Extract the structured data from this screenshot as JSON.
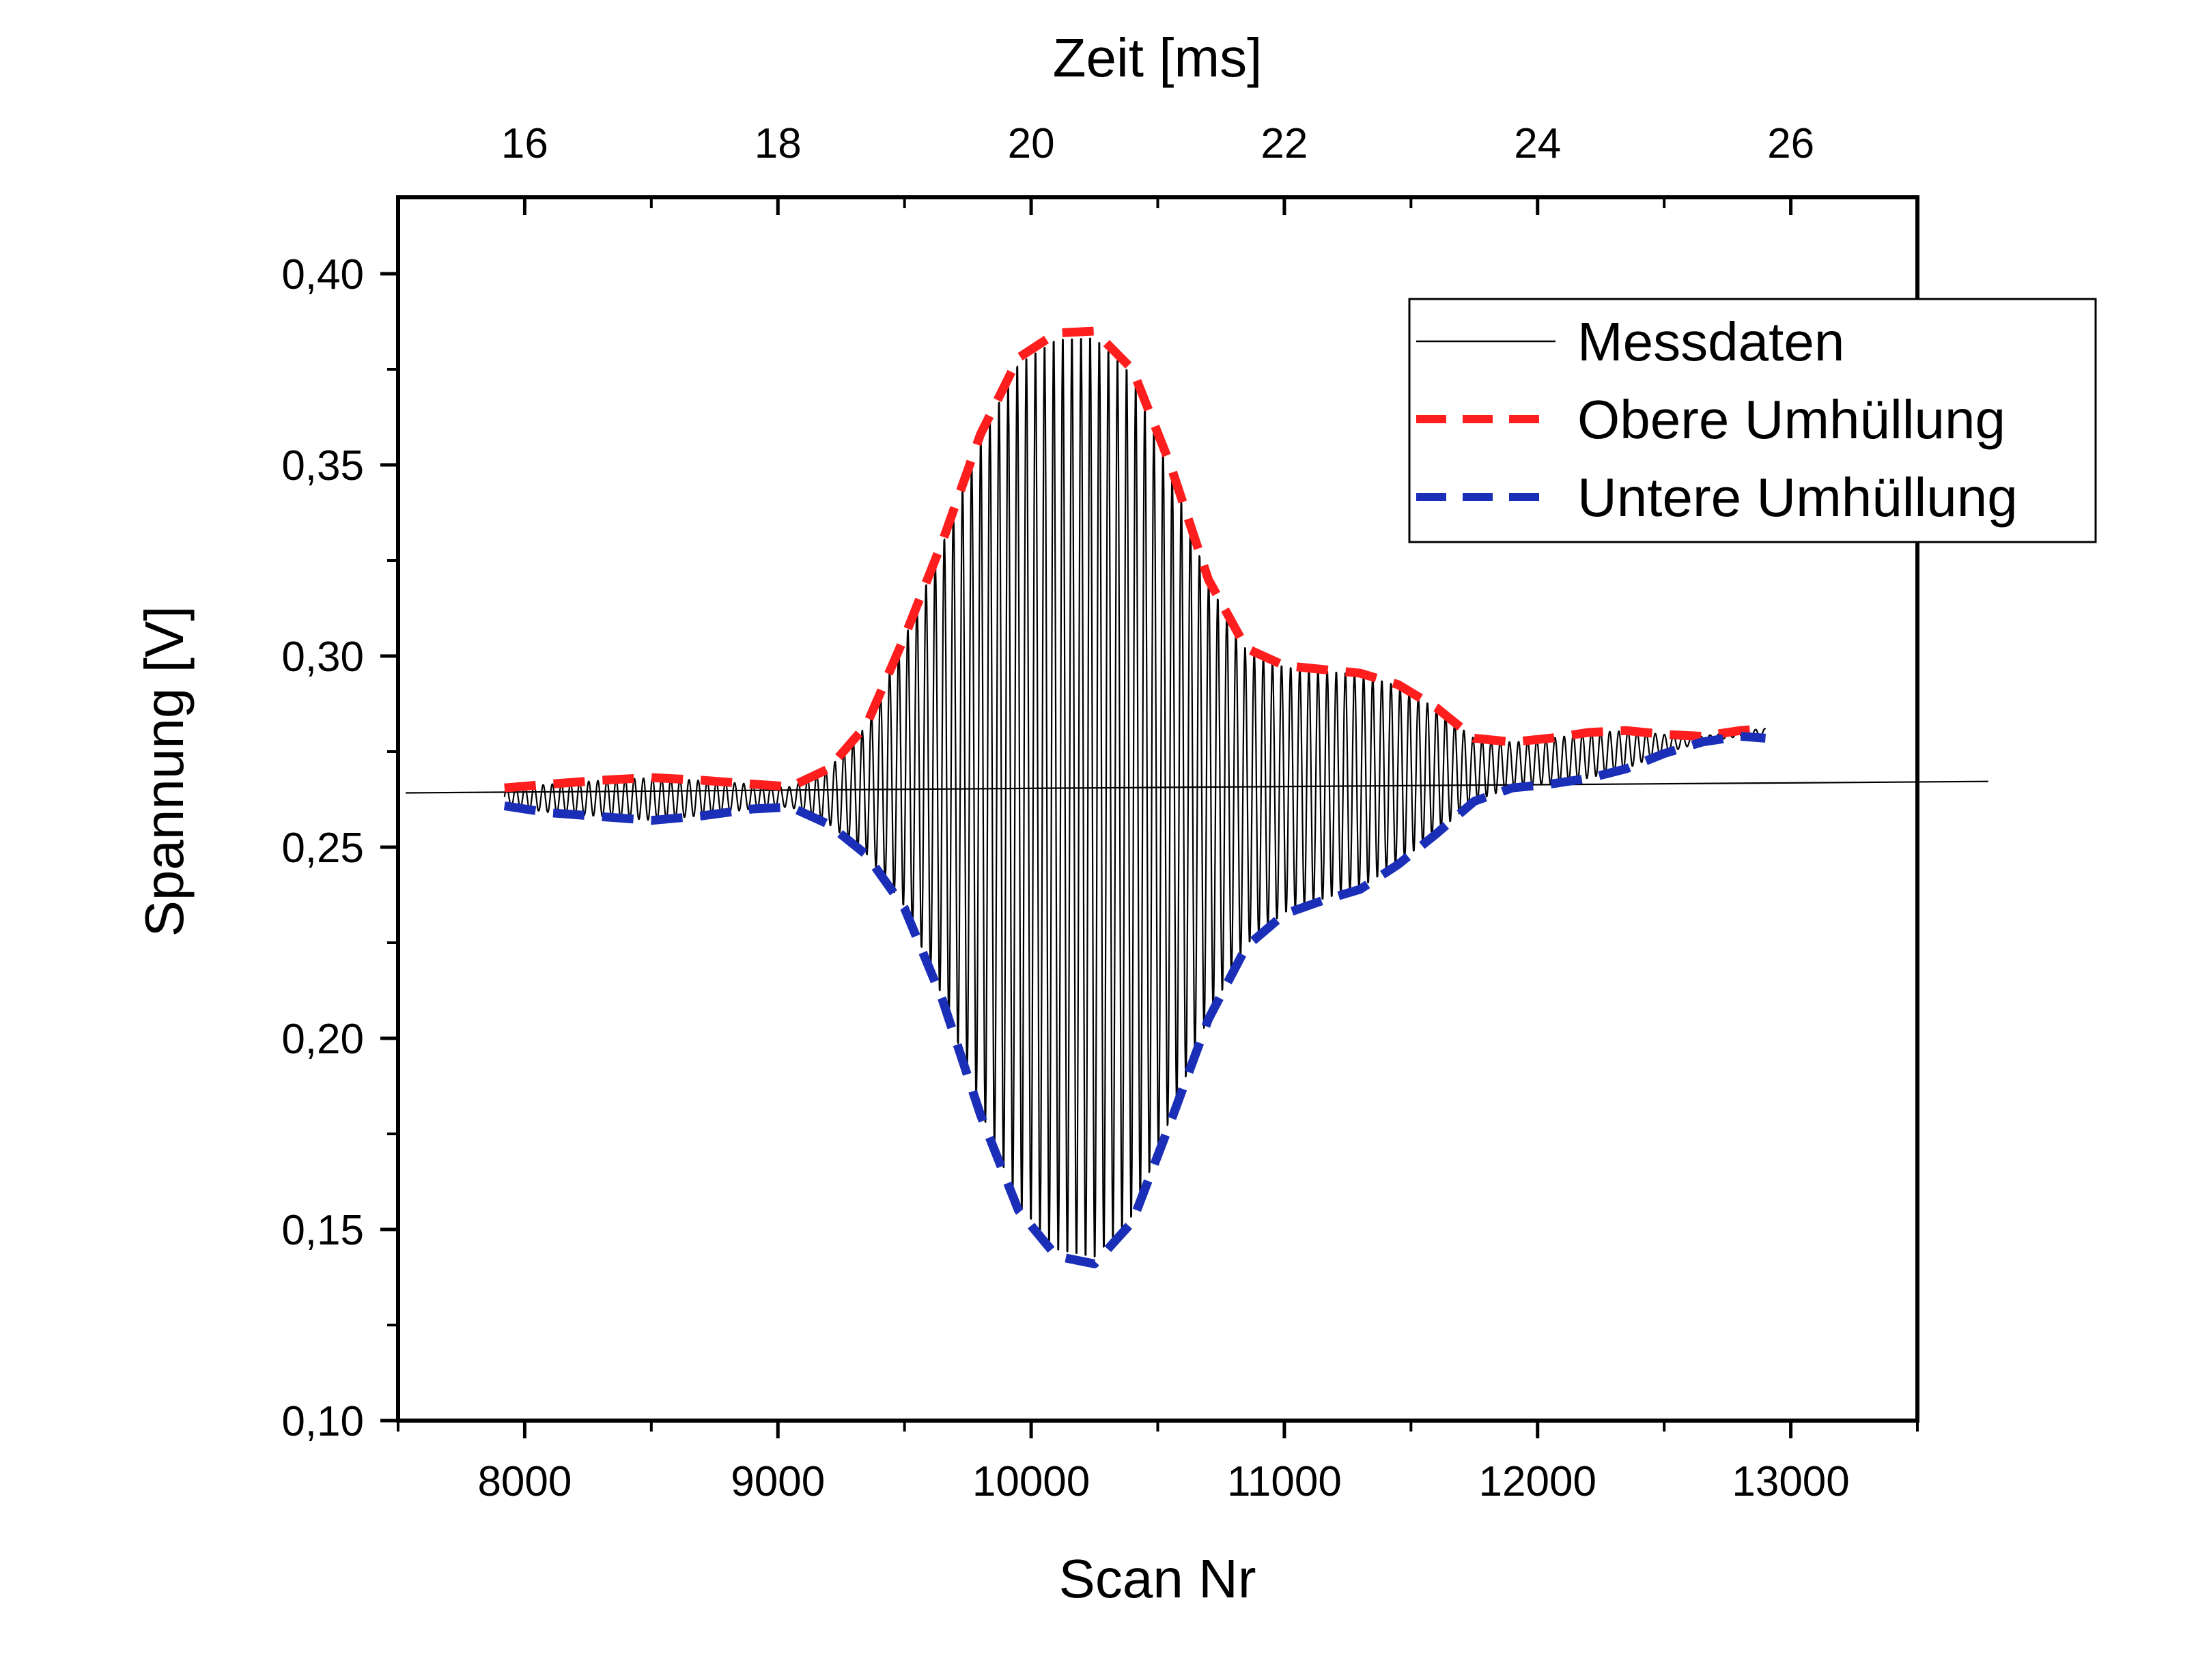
{
  "chart_data": {
    "type": "line",
    "xlabel": "Scan Nr",
    "x2label": "Zeit [ms]",
    "ylabel": "Spannung [V]",
    "xlim": [
      7500,
      13500
    ],
    "x2lim": [
      15,
      27
    ],
    "ylim": [
      0.1,
      0.42
    ],
    "xticks": [
      8000,
      9000,
      10000,
      11000,
      12000,
      13000
    ],
    "xtick_labels": [
      "8000",
      "9000",
      "10000",
      "11000",
      "12000",
      "13000"
    ],
    "x2ticks": [
      16,
      18,
      20,
      22,
      24,
      26
    ],
    "x2tick_labels": [
      "16",
      "18",
      "20",
      "22",
      "24",
      "26"
    ],
    "yticks": [
      0.1,
      0.15,
      0.2,
      0.25,
      0.3,
      0.35,
      0.4
    ],
    "ytick_labels": [
      "0,10",
      "0,15",
      "0,20",
      "0,25",
      "0,30",
      "0,35",
      "0,40"
    ],
    "grid": false,
    "legend_position": "top-right",
    "series": [
      {
        "name": "Messdaten",
        "color": "#000000",
        "style": "solid",
        "baseline": {
          "x": [
            7530,
            13780
          ],
          "y": [
            0.2642,
            0.2672
          ]
        },
        "oscillation_period": 36,
        "x_range": [
          7920,
          12900
        ]
      },
      {
        "name": "Obere Umhüllung",
        "color": "#ff1e1e",
        "style": "dashed",
        "x": [
          7920,
          8100,
          8300,
          8500,
          8700,
          8900,
          9050,
          9200,
          9350,
          9500,
          9650,
          9800,
          9950,
          10100,
          10250,
          10400,
          10550,
          10700,
          10850,
          11000,
          11150,
          11300,
          11450,
          11600,
          11750,
          11900,
          12050,
          12200,
          12350,
          12500,
          12650,
          12800,
          12900
        ],
        "y": [
          0.2655,
          0.2665,
          0.2675,
          0.2682,
          0.2675,
          0.2665,
          0.2658,
          0.2705,
          0.282,
          0.305,
          0.33,
          0.358,
          0.378,
          0.3845,
          0.385,
          0.375,
          0.35,
          0.32,
          0.302,
          0.2975,
          0.2965,
          0.2955,
          0.2925,
          0.2865,
          0.2785,
          0.2775,
          0.2785,
          0.28,
          0.2805,
          0.2795,
          0.279,
          0.2805,
          0.281
        ]
      },
      {
        "name": "Untere Umhüllung",
        "color": "#1a2eb8",
        "style": "dashed",
        "x": [
          7920,
          8100,
          8300,
          8500,
          8700,
          8900,
          9050,
          9200,
          9350,
          9500,
          9650,
          9800,
          9950,
          10100,
          10250,
          10400,
          10550,
          10700,
          10850,
          11000,
          11150,
          11300,
          11450,
          11600,
          11750,
          11900,
          12050,
          12200,
          12350,
          12500,
          12650,
          12800,
          12900
        ],
        "y": [
          0.2608,
          0.259,
          0.258,
          0.257,
          0.2582,
          0.26,
          0.2605,
          0.256,
          0.248,
          0.234,
          0.21,
          0.18,
          0.155,
          0.143,
          0.141,
          0.152,
          0.178,
          0.205,
          0.224,
          0.2325,
          0.236,
          0.239,
          0.2455,
          0.2535,
          0.262,
          0.2655,
          0.2665,
          0.268,
          0.2705,
          0.2745,
          0.2775,
          0.279,
          0.2785
        ]
      }
    ]
  }
}
